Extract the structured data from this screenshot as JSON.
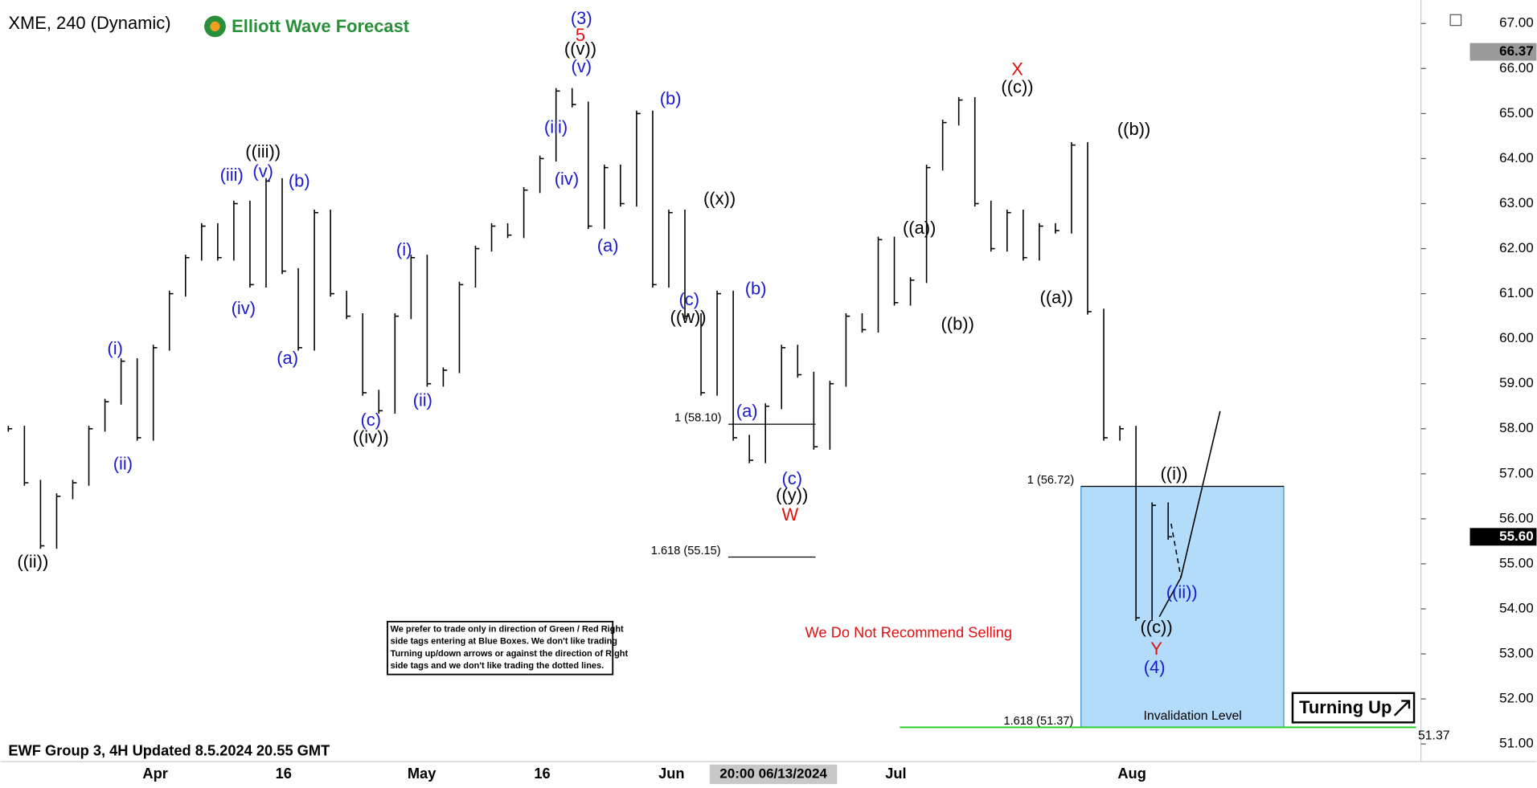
{
  "chart_data": {
    "type": "ohlc",
    "symbol_title": "XME, 240 (Dynamic)",
    "brand": "Elliott Wave Forecast",
    "footer": "EWF Group 3, 4H Updated 8.5.2024 20.55 GMT",
    "crosshair_time": "20:00 06/13/2024",
    "x_labels": [
      "Apr",
      "16",
      "May",
      "16",
      "Jun",
      "Jul",
      "Aug"
    ],
    "ylim": [
      51,
      67
    ],
    "yticks": [
      {
        "value": 51,
        "label": "51.00"
      },
      {
        "value": 52,
        "label": "52.00"
      },
      {
        "value": 53,
        "label": "53.00"
      },
      {
        "value": 54,
        "label": "54.00"
      },
      {
        "value": 55,
        "label": "55.00"
      },
      {
        "value": 56,
        "label": "56.00"
      },
      {
        "value": 57,
        "label": "57.00"
      },
      {
        "value": 58,
        "label": "58.00"
      },
      {
        "value": 59,
        "label": "59.00"
      },
      {
        "value": 60,
        "label": "60.00"
      },
      {
        "value": 61,
        "label": "61.00"
      },
      {
        "value": 62,
        "label": "62.00"
      },
      {
        "value": 63,
        "label": "63.00"
      },
      {
        "value": 64,
        "label": "64.00"
      },
      {
        "value": 65,
        "label": "65.00"
      },
      {
        "value": 66,
        "label": "66.00"
      },
      {
        "value": 67,
        "label": "67.00"
      }
    ],
    "prices": [
      58.0,
      56.8,
      55.4,
      56.5,
      56.8,
      58.0,
      58.6,
      59.5,
      57.8,
      59.8,
      61.0,
      61.8,
      62.5,
      61.8,
      63.0,
      61.2,
      63.5,
      61.5,
      59.8,
      62.8,
      61.0,
      60.5,
      58.8,
      58.4,
      60.5,
      61.8,
      59.0,
      59.3,
      61.2,
      62.0,
      62.5,
      62.3,
      63.3,
      64.0,
      65.5,
      65.2,
      62.5,
      63.8,
      63.0,
      65.0,
      61.2,
      62.8,
      60.5,
      58.8,
      61.0,
      57.8,
      57.3,
      58.5,
      59.8,
      59.2,
      57.6,
      59.0,
      60.5,
      60.2,
      62.2,
      60.8,
      61.3,
      63.8,
      64.8,
      65.3,
      63.0,
      62.0,
      62.8,
      61.8,
      62.5,
      62.4,
      64.3,
      60.6,
      57.8,
      58.0,
      53.8,
      56.3,
      55.6
    ],
    "bar_color": "#000000",
    "high_marker": {
      "value": 66.37,
      "label": "66.37"
    },
    "last_price": {
      "value": 55.6,
      "label": "55.60"
    },
    "invalidation_price": {
      "value": 51.37,
      "label": "51.37"
    },
    "fib_levels": [
      {
        "value": 58.1,
        "label": "1 (58.10)"
      },
      {
        "value": 55.15,
        "label": "1.618 (55.15)"
      },
      {
        "value": 56.72,
        "label": "1 (56.72)"
      },
      {
        "value": 51.37,
        "label": "1.618 (51.37)"
      }
    ],
    "box_color": "#b3dcfa",
    "box_label": "Invalidation Level",
    "warning": "We Do Not Recommend Selling",
    "turning_label": "Turning Up",
    "disclaimer": [
      "We prefer to trade only in direction of Green / Red Right",
      "side tags entering at Blue Boxes. We don't like trading",
      "Turning up/down arrows or against the direction of Right",
      "side tags and we don't like trading the dotted lines."
    ],
    "wave_labels": [
      {
        "text": "((ii))",
        "color": "#000000"
      },
      {
        "text": "(i)",
        "color": "#1a1acc"
      },
      {
        "text": "(ii)",
        "color": "#1a1acc"
      },
      {
        "text": "(iii)",
        "color": "#1a1acc"
      },
      {
        "text": "(iv)",
        "color": "#1a1acc"
      },
      {
        "text": "((iii))",
        "color": "#000000"
      },
      {
        "text": "(v)",
        "color": "#1a1acc"
      },
      {
        "text": "(b)",
        "color": "#1a1acc"
      },
      {
        "text": "(a)",
        "color": "#1a1acc"
      },
      {
        "text": "(c)",
        "color": "#1a1acc"
      },
      {
        "text": "((iv))",
        "color": "#000000"
      },
      {
        "text": "(i)",
        "color": "#1a1acc"
      },
      {
        "text": "(ii)",
        "color": "#1a1acc"
      },
      {
        "text": "(iii)",
        "color": "#1a1acc"
      },
      {
        "text": "(iv)",
        "color": "#1a1acc"
      },
      {
        "text": "(3)",
        "color": "#1a1acc"
      },
      {
        "text": "5",
        "color": "#e01010"
      },
      {
        "text": "((v))",
        "color": "#000000"
      },
      {
        "text": "(v)",
        "color": "#1a1acc"
      },
      {
        "text": "(a)",
        "color": "#1a1acc"
      },
      {
        "text": "(b)",
        "color": "#1a1acc"
      },
      {
        "text": "((x))",
        "color": "#000000"
      },
      {
        "text": "(c)",
        "color": "#1a1acc"
      },
      {
        "text": "((w))",
        "color": "#000000"
      },
      {
        "text": "(b)",
        "color": "#1a1acc"
      },
      {
        "text": "(a)",
        "color": "#1a1acc"
      },
      {
        "text": "(c)",
        "color": "#1a1acc"
      },
      {
        "text": "((y))",
        "color": "#000000"
      },
      {
        "text": "W",
        "color": "#e01010"
      },
      {
        "text": "((a))",
        "color": "#000000"
      },
      {
        "text": "((b))",
        "color": "#000000"
      },
      {
        "text": "X",
        "color": "#e01010"
      },
      {
        "text": "((c))",
        "color": "#000000"
      },
      {
        "text": "((a))",
        "color": "#000000"
      },
      {
        "text": "((b))",
        "color": "#000000"
      },
      {
        "text": "((i))",
        "color": "#000000"
      },
      {
        "text": "((ii))",
        "color": "#1a1acc"
      },
      {
        "text": "((c))",
        "color": "#000000"
      },
      {
        "text": "Y",
        "color": "#e01010"
      },
      {
        "text": "(4)",
        "color": "#1a1acc"
      }
    ]
  }
}
